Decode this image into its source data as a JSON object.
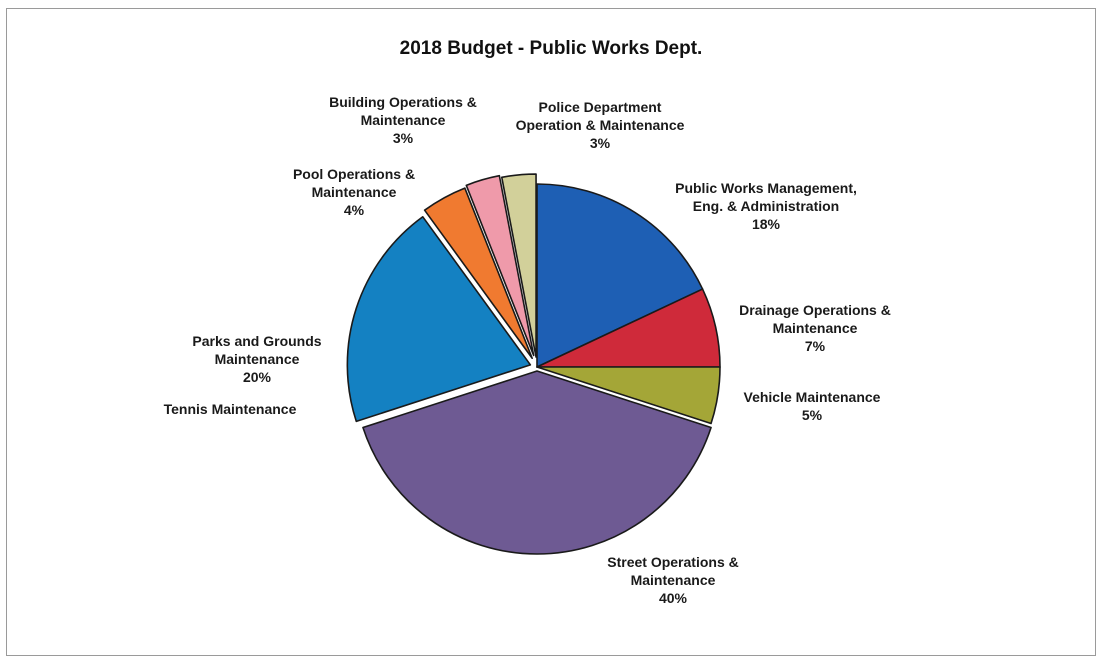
{
  "chart_data": {
    "type": "pie",
    "title": "2018 Budget - Public Works Dept.",
    "slices": [
      {
        "name": "Public Works Management, Eng. & Administration",
        "value": 18,
        "label_lines": [
          "Public Works Management,",
          "Eng. & Administration",
          "18%"
        ],
        "color": "#1e5fb4"
      },
      {
        "name": "Drainage Operations & Maintenance",
        "value": 7,
        "label_lines": [
          "Drainage Operations &",
          "Maintenance",
          "7%"
        ],
        "color": "#cf2a3a"
      },
      {
        "name": "Vehicle Maintenance",
        "value": 5,
        "label_lines": [
          "Vehicle Maintenance",
          "5%"
        ],
        "color": "#a4a637"
      },
      {
        "name": "Street Operations & Maintenance",
        "value": 40,
        "label_lines": [
          "Street Operations &",
          "Maintenance",
          "40%"
        ],
        "color": "#6e5a93"
      },
      {
        "name": "Tennis Maintenance",
        "value": 0,
        "label_lines": [
          "Tennis Maintenance"
        ],
        "color": "#ffffff"
      },
      {
        "name": "Parks and Grounds Maintenance",
        "value": 20,
        "label_lines": [
          "Parks and Grounds",
          "Maintenance",
          "20%"
        ],
        "color": "#1481c2"
      },
      {
        "name": "Pool Operations & Maintenance",
        "value": 4,
        "label_lines": [
          "Pool Operations &",
          "Maintenance",
          "4%"
        ],
        "color": "#f07a30"
      },
      {
        "name": "Building Operations & Maintenance",
        "value": 3,
        "label_lines": [
          "Building Operations &",
          "Maintenance",
          "3%"
        ],
        "color": "#ef9aaa"
      },
      {
        "name": "Police Department Operation & Maintenance",
        "value": 3,
        "label_lines": [
          "Police Department",
          "Operation & Maintenance",
          "3%"
        ],
        "color": "#d2d09a"
      }
    ]
  }
}
